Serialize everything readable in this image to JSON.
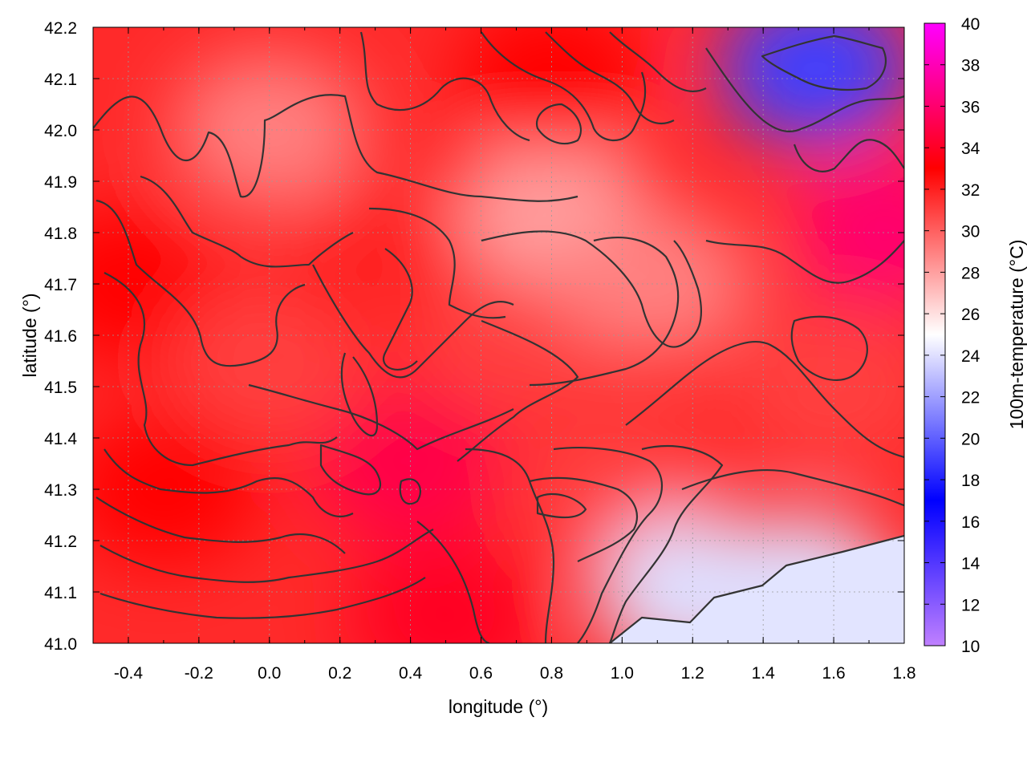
{
  "chart_data": {
    "type": "heatmap",
    "title": "",
    "xlabel": "longitude (°)",
    "ylabel": "latitude (°)",
    "colorbar_label": "100m-temperature (°C)",
    "xlim": [
      -0.5,
      1.8
    ],
    "ylim": [
      41.0,
      42.2
    ],
    "x_ticks": [
      -0.4,
      -0.2,
      0.0,
      0.2,
      0.4,
      0.6,
      0.8,
      1.0,
      1.2,
      1.4,
      1.6,
      1.8
    ],
    "x_tick_labels": [
      "-0.4",
      "-0.2",
      "0.0",
      "0.2",
      "0.4",
      "0.6",
      "0.8",
      "1.0",
      "1.2",
      "1.4",
      "1.6",
      "1.8"
    ],
    "y_ticks": [
      41.0,
      41.1,
      41.2,
      41.3,
      41.4,
      41.5,
      41.6,
      41.7,
      41.8,
      41.9,
      42.0,
      42.1,
      42.2
    ],
    "y_tick_labels": [
      "41.0",
      "41.1",
      "41.2",
      "41.3",
      "41.4",
      "41.5",
      "41.6",
      "41.7",
      "41.8",
      "41.9",
      "42.0",
      "42.1",
      "42.2"
    ],
    "colorbar_range": [
      10,
      40
    ],
    "colorbar_ticks": [
      10,
      12,
      14,
      16,
      18,
      20,
      22,
      24,
      26,
      28,
      30,
      32,
      34,
      36,
      38,
      40
    ],
    "colorbar_tick_labels": [
      "10",
      "12",
      "14",
      "16",
      "18",
      "20",
      "22",
      "24",
      "26",
      "28",
      "30",
      "32",
      "34",
      "36",
      "38",
      "40"
    ],
    "colormap": [
      {
        "value": 10,
        "color": "#c080ff"
      },
      {
        "value": 17,
        "color": "#0000ff"
      },
      {
        "value": 25,
        "color": "#ffffff"
      },
      {
        "value": 33,
        "color": "#ff0000"
      },
      {
        "value": 40,
        "color": "#ff00ff"
      }
    ],
    "grid": true,
    "temperature_field": [
      {
        "lon": -0.4,
        "lat": 41.7,
        "t": 33
      },
      {
        "lon": -0.3,
        "lat": 41.3,
        "t": 33
      },
      {
        "lon": 0.0,
        "lat": 41.55,
        "t": 31
      },
      {
        "lon": 0.0,
        "lat": 42.0,
        "t": 29
      },
      {
        "lon": 0.3,
        "lat": 41.75,
        "t": 32
      },
      {
        "lon": 0.4,
        "lat": 41.35,
        "t": 35
      },
      {
        "lon": 0.5,
        "lat": 41.05,
        "t": 34
      },
      {
        "lon": 0.7,
        "lat": 41.6,
        "t": 31
      },
      {
        "lon": 0.8,
        "lat": 41.85,
        "t": 28
      },
      {
        "lon": 0.8,
        "lat": 42.1,
        "t": 33
      },
      {
        "lon": 1.0,
        "lat": 41.3,
        "t": 31
      },
      {
        "lon": 1.1,
        "lat": 41.7,
        "t": 29
      },
      {
        "lon": 1.2,
        "lat": 41.1,
        "t": 24
      },
      {
        "lon": 1.5,
        "lat": 41.1,
        "t": 24
      },
      {
        "lon": 1.55,
        "lat": 42.12,
        "t": 19
      },
      {
        "lon": 1.6,
        "lat": 41.5,
        "t": 31
      },
      {
        "lon": 1.75,
        "lat": 41.8,
        "t": 36
      }
    ]
  }
}
